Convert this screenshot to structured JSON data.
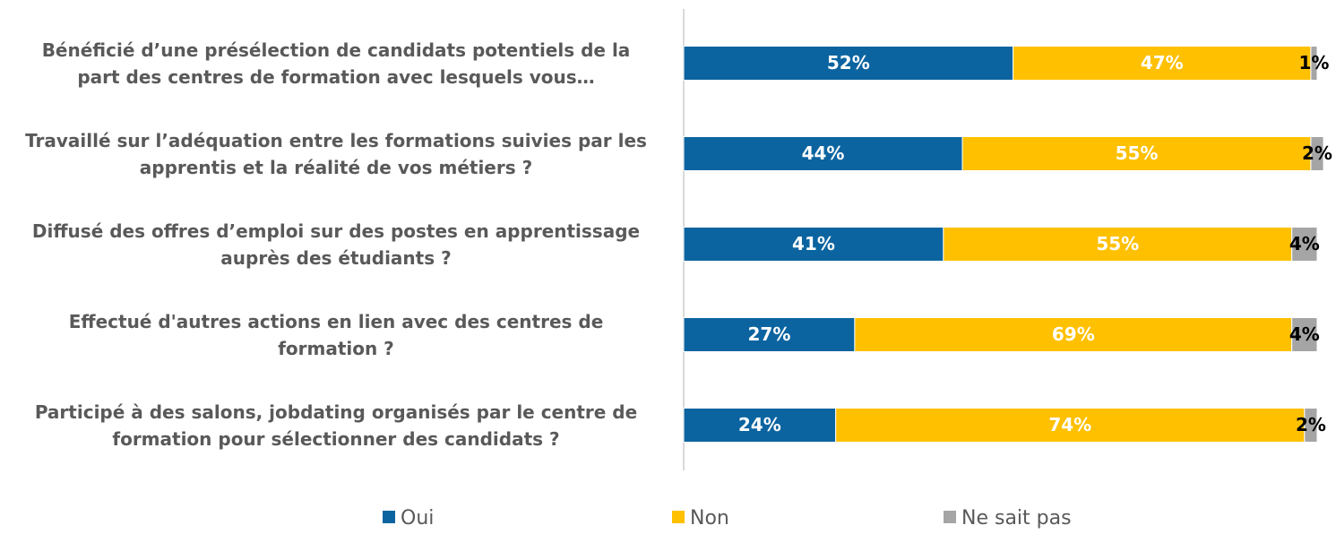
{
  "chart_data": {
    "type": "stacked-bar-horizontal",
    "categories": [
      "Bénéficié d’une présélection de candidats potentiels de la part des centres de formation avec lesquels vous…",
      "Travaillé sur l’adéquation entre les formations suivies par les apprentis et la réalité de vos métiers ?",
      "Diffusé des offres d’emploi sur des postes en apprentissage auprès des étudiants ?",
      "Effectué d'autres actions en lien avec des centres de formation ?",
      "Participé à des salons, jobdating organisés par le centre de formation pour sélectionner des candidats ?"
    ],
    "series": [
      {
        "name": "Oui",
        "color": "#0b64a0",
        "values": [
          52,
          44,
          41,
          27,
          24
        ],
        "value_labels": [
          "52%",
          "44%",
          "41%",
          "27%",
          "24%"
        ]
      },
      {
        "name": "Non",
        "color": "#ffc000",
        "values": [
          47,
          55,
          55,
          69,
          74
        ],
        "value_labels": [
          "47%",
          "55%",
          "55%",
          "69%",
          "74%"
        ]
      },
      {
        "name": "Ne sait pas",
        "color": "#a5a5a5",
        "values": [
          1,
          2,
          4,
          4,
          2
        ],
        "value_labels": [
          "1%",
          "2%",
          "4%",
          "4%",
          "2%"
        ]
      }
    ],
    "xlim": [
      0,
      100
    ],
    "legend": "bottom"
  }
}
